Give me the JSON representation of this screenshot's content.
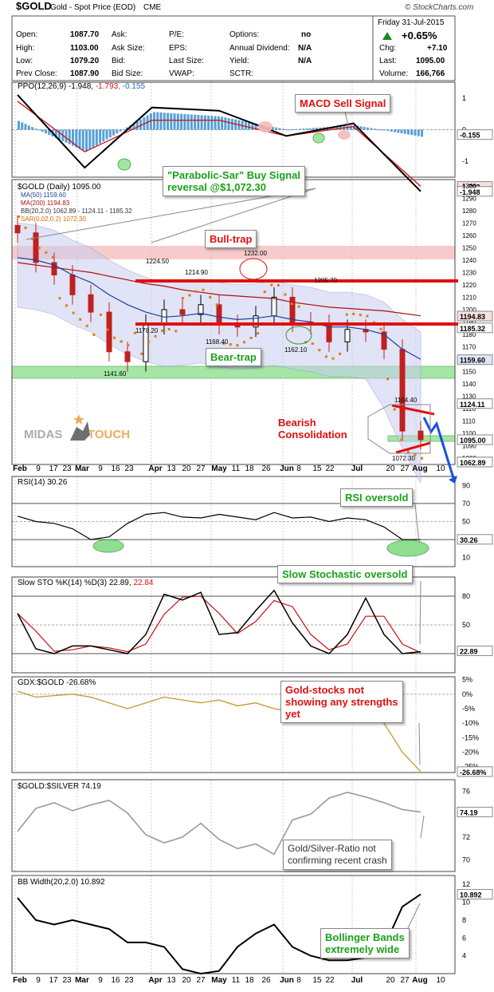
{
  "header": {
    "symbol": "$GOLD",
    "name": "Gold - Spot Price (EOD)",
    "exchange": "CME",
    "source": "© StockCharts.com",
    "date": "Friday   31-Jul-2015",
    "change_pct": "+0.65%",
    "open_label": "Open:",
    "open": "1087.70",
    "high_label": "High:",
    "high": "1103.00",
    "low_label": "Low:",
    "low": "1079.20",
    "prev_label": "Prev Close:",
    "prev": "1087.90",
    "ask_label": "Ask:",
    "ask_size_label": "Ask Size:",
    "bid_label": "Bid:",
    "bid_size_label": "Bid Size:",
    "pe_label": "P/E:",
    "eps_label": "EPS:",
    "last_size_label": "Last Size:",
    "vwap_label": "VWAP:",
    "options_label": "Options:",
    "options": "no",
    "div_label": "Annual Dividend:",
    "div": "N/A",
    "yield_label": "Yield:",
    "yield": "N/A",
    "sctr_label": "SCTR:",
    "chg_label": "Chg:",
    "chg": "+7.10",
    "last_label": "Last:",
    "last": "1095.00",
    "volume_label": "Volume:",
    "volume": "166,766"
  },
  "x_labels": [
    "Feb",
    "9",
    "17",
    "23",
    "Mar",
    "9",
    "16",
    "23",
    "Apr",
    "13",
    "20",
    "27",
    "May",
    "11",
    "18",
    "26",
    "Jun",
    "8",
    "15",
    "22",
    "Jul",
    "20",
    "27",
    "Aug",
    "10"
  ],
  "panels": {
    "ppo": {
      "legend_a": "PPO(12,26,9) -1.948, ",
      "legend_b": "-1.793",
      "legend_c": ", -0.155",
      "ticks": [
        "1",
        "0",
        "-1"
      ],
      "val_hist": "-0.155",
      "val_signal": "-1.793",
      "val_ppo": "-1.948"
    },
    "price": {
      "legend": [
        "$GOLD (Daily) 1095.00",
        "MA(50) 1159.60",
        "MA(200) 1194.83",
        "BB(20,2.0) 1062.89 - 1124.11 - 1185.32",
        "SAR(0.02,0.2) 1072.30"
      ],
      "ticks": [
        "1300",
        "1290",
        "1280",
        "1270",
        "1260",
        "1250",
        "1240",
        "1230",
        "1220",
        "1210",
        "1200",
        "1190",
        "1180",
        "1170",
        "1160",
        "1150",
        "1140",
        "1130",
        "1120",
        "1110",
        "1100",
        "1090",
        "1080"
      ],
      "value_tags": [
        "1194.83",
        "1185.32",
        "1159.60",
        "1124.11",
        "1095.00",
        "1072.30",
        "1062.89"
      ],
      "annotations": [
        "1232.00",
        "1224.50",
        "1214.90",
        "1205.70",
        "1178.20",
        "1168.40",
        "1162.10",
        "1141.60",
        "1104.40",
        "1072.30"
      ]
    },
    "rsi": {
      "legend": "RSI(14) 30.26",
      "ticks": [
        "90",
        "70",
        "50",
        "30",
        "10"
      ],
      "value": "30.26"
    },
    "sto": {
      "legend": "Slow STO %K(14) %D(3) 22.89, ",
      "legend_d": "22.84",
      "ticks": [
        "80",
        "50",
        "20"
      ],
      "value": "22.89"
    },
    "gdx": {
      "legend": "GDX:$GOLD -26.68%",
      "ticks": [
        "5%",
        "0%",
        "-5%",
        "-10%",
        "-15%",
        "-20%",
        "-25%"
      ],
      "value": "-26.68%"
    },
    "ratio": {
      "legend": "$GOLD:$SILVER 74.19",
      "ticks": [
        "76",
        "74",
        "72",
        "70"
      ],
      "value": "74.19"
    },
    "bbw": {
      "legend": "BB Width(20,2.0) 10.892",
      "ticks": [
        "12",
        "10",
        "8",
        "6",
        "4"
      ],
      "value": "10.892"
    }
  },
  "notes": {
    "macd": "MACD Sell Signal",
    "sar_1": "\"Parabolic-Sar\" Buy Signal",
    "sar_2": "reversal @$1,072.30",
    "bull": "Bull-trap",
    "bear": "Bear-trap",
    "consol_1": "Bearish",
    "consol_2": "Consolidation",
    "rsi": "RSI oversold",
    "sto": "Slow Stochastic oversold",
    "gdx_1": "Gold-stocks not",
    "gdx_2": "showing any strengths",
    "gdx_3": "yet",
    "ratio_1": "Gold/Silver-Ratio not",
    "ratio_2": "confirming recent crash",
    "bbw_1": "Bollinger Bands",
    "bbw_2": "extremely wide"
  },
  "watermark": {
    "part1": "MIDAS",
    "part2": "TOUCH"
  },
  "chart_data": [
    {
      "type": "line",
      "name": "PPO(12,26,9)",
      "x": [
        "Feb",
        "Mar",
        "Apr",
        "May",
        "Jun",
        "Jul",
        "Aug"
      ],
      "series": [
        {
          "name": "PPO",
          "values": [
            1.1,
            -1.2,
            0.7,
            0.6,
            -0.2,
            0.2,
            -1.95
          ]
        },
        {
          "name": "Signal",
          "values": [
            0.9,
            -0.7,
            0.3,
            0.3,
            -0.2,
            0.1,
            -1.79
          ]
        }
      ],
      "ylim": [
        -1.5,
        1.5
      ]
    },
    {
      "type": "line",
      "name": "$GOLD (Daily)",
      "x": [
        "Feb",
        "9",
        "17",
        "23",
        "Mar",
        "9",
        "16",
        "23",
        "Apr",
        "13",
        "20",
        "27",
        "May",
        "11",
        "18",
        "26",
        "Jun",
        "8",
        "15",
        "22",
        "Jul",
        "20",
        "27"
      ],
      "series": [
        {
          "name": "Close",
          "values": [
            1262,
            1238,
            1228,
            1212,
            1198,
            1166,
            1158,
            1188,
            1200,
            1196,
            1204,
            1188,
            1186,
            1195,
            1210,
            1190,
            1188,
            1174,
            1184,
            1182,
            1168,
            1102,
            1095
          ]
        },
        {
          "name": "MA(50)",
          "values": [
            1242,
            1240,
            1236,
            1228,
            1222,
            1212,
            1204,
            1198,
            1194,
            1195,
            1197,
            1194,
            1192,
            1193,
            1195,
            1192,
            1190,
            1186,
            1186,
            1184,
            1180,
            1168,
            1160
          ]
        },
        {
          "name": "MA(200)",
          "values": [
            1238,
            1236,
            1234,
            1232,
            1230,
            1227,
            1224,
            1221,
            1219,
            1216,
            1214,
            1212,
            1211,
            1210,
            1209,
            1206,
            1204,
            1202,
            1201,
            1200,
            1199,
            1197,
            1195
          ]
        }
      ],
      "support_resistance": [
        1237,
        1213,
        1176,
        1135,
        1084
      ],
      "ylim": [
        1075,
        1305
      ]
    },
    {
      "type": "line",
      "name": "RSI(14)",
      "values": [
        56,
        50,
        48,
        42,
        30,
        33,
        48,
        58,
        60,
        55,
        54,
        58,
        55,
        52,
        60,
        54,
        55,
        50,
        54,
        52,
        44,
        30,
        30
      ],
      "ylim": [
        0,
        100
      ]
    },
    {
      "type": "line",
      "name": "Slow STO %K(14) %D(3)",
      "values": [
        62,
        25,
        20,
        28,
        28,
        24,
        20,
        40,
        82,
        76,
        84,
        40,
        42,
        65,
        86,
        52,
        28,
        20,
        40,
        78,
        40,
        20,
        22
      ],
      "ylim": [
        0,
        100
      ]
    },
    {
      "type": "line",
      "name": "GDX:$GOLD",
      "values": [
        1,
        -1,
        -0.5,
        0,
        -1,
        -3,
        -5,
        -3,
        -1,
        -2,
        -3,
        -2,
        -4,
        -3,
        -5,
        -6,
        -8,
        -6,
        -4,
        -6,
        -10,
        -20,
        -26.68
      ],
      "ylim": [
        -27,
        6
      ]
    },
    {
      "type": "line",
      "name": "$GOLD:$SILVER",
      "values": [
        72.5,
        74.5,
        75.0,
        74.3,
        74.8,
        75.2,
        74.1,
        72.2,
        71.5,
        72.0,
        73.2,
        71.8,
        71.0,
        71.4,
        70.5,
        73.5,
        74.0,
        75.4,
        75.9,
        75.5,
        75.0,
        74.4,
        74.19
      ],
      "ylim": [
        69,
        77
      ]
    },
    {
      "type": "line",
      "name": "BB Width(20,2.0)",
      "values": [
        10.5,
        8.0,
        7.5,
        8.0,
        7.5,
        7.0,
        5.5,
        5.5,
        5.0,
        2.5,
        2.0,
        2.3,
        5.0,
        6.5,
        7.5,
        5.0,
        4.0,
        3.5,
        3.5,
        3.8,
        5.0,
        9.5,
        10.892
      ],
      "ylim": [
        2,
        13
      ]
    }
  ]
}
